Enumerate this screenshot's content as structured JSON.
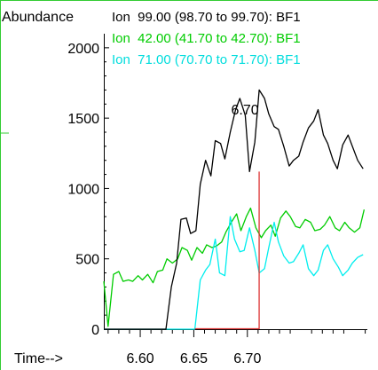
{
  "chart_data": {
    "type": "line",
    "ylabel": "Abundance",
    "xlabel": "Time-->",
    "xlim": [
      6.566,
      6.812
    ],
    "ylim": [
      0,
      2100
    ],
    "x_ticks": [
      6.6,
      6.65,
      6.7
    ],
    "x_tick_labels": [
      "6.60",
      "6.65",
      "6.70"
    ],
    "y_ticks": [
      0,
      500,
      1000,
      1500,
      2000
    ],
    "y_tick_labels": [
      "0",
      "500",
      "1000",
      "1500",
      "2000"
    ],
    "grid": false,
    "legend_position": "top",
    "series": [
      {
        "name": "Ion  99.00 (98.70 to 99.70): BF1",
        "color": "#000000",
        "x": [
          6.624,
          6.629,
          6.634,
          6.638,
          6.643,
          6.647,
          6.652,
          6.656,
          6.661,
          6.666,
          6.67,
          6.675,
          6.679,
          6.684,
          6.689,
          6.693,
          6.698,
          6.702,
          6.707,
          6.711,
          6.716,
          6.72,
          6.725,
          6.729,
          6.734,
          6.739,
          6.743,
          6.748,
          6.752,
          6.757,
          6.762,
          6.766,
          6.771,
          6.775,
          6.78,
          6.784,
          6.789,
          6.794,
          6.798,
          6.803,
          6.808
        ],
        "y": [
          0,
          300,
          470,
          780,
          790,
          680,
          700,
          1030,
          1200,
          1090,
          1340,
          1320,
          1210,
          1400,
          1560,
          1640,
          1520,
          1120,
          1330,
          1700,
          1640,
          1530,
          1440,
          1420,
          1300,
          1160,
          1200,
          1230,
          1330,
          1430,
          1480,
          1560,
          1380,
          1320,
          1200,
          1140,
          1310,
          1380,
          1300,
          1200,
          1140
        ]
      },
      {
        "name": "Ion  42.00 (41.70 to 42.70): BF1",
        "color": "#00cc00",
        "x": [
          6.566,
          6.57,
          6.575,
          6.58,
          6.584,
          6.589,
          6.593,
          6.598,
          6.602,
          6.607,
          6.612,
          6.616,
          6.621,
          6.625,
          6.63,
          6.635,
          6.639,
          6.644,
          6.648,
          6.653,
          6.658,
          6.662,
          6.667,
          6.671,
          6.676,
          6.68,
          6.685,
          6.69,
          6.694,
          6.699,
          6.703,
          6.708,
          6.713,
          6.717,
          6.722,
          6.726,
          6.731,
          6.736,
          6.74,
          6.745,
          6.749,
          6.754,
          6.759,
          6.763,
          6.768,
          6.772,
          6.777,
          6.782,
          6.786,
          6.791,
          6.795,
          6.8,
          6.805,
          6.809
        ],
        "y": [
          340,
          20,
          390,
          410,
          340,
          350,
          340,
          380,
          350,
          390,
          330,
          410,
          420,
          500,
          470,
          500,
          580,
          560,
          490,
          580,
          540,
          600,
          580,
          590,
          620,
          690,
          760,
          820,
          700,
          800,
          860,
          720,
          650,
          700,
          740,
          660,
          790,
          840,
          800,
          730,
          720,
          780,
          760,
          700,
          710,
          740,
          800,
          720,
          700,
          760,
          720,
          690,
          720,
          850
        ]
      },
      {
        "name": "Ion  71.00 (70.70 to 71.70): BF1",
        "color": "#00eeee",
        "x": [
          6.651,
          6.656,
          6.661,
          6.665,
          6.67,
          6.674,
          6.679,
          6.684,
          6.688,
          6.693,
          6.697,
          6.702,
          6.707,
          6.711,
          6.716,
          6.72,
          6.725,
          6.729,
          6.734,
          6.739,
          6.743,
          6.748,
          6.752,
          6.757,
          6.762,
          6.766,
          6.771,
          6.775,
          6.78,
          6.785,
          6.789,
          6.794,
          6.798,
          6.803,
          6.808
        ],
        "y": [
          0,
          350,
          420,
          460,
          640,
          400,
          380,
          800,
          640,
          550,
          560,
          720,
          560,
          400,
          430,
          580,
          760,
          620,
          520,
          470,
          480,
          540,
          600,
          430,
          380,
          420,
          560,
          600,
          500,
          440,
          380,
          420,
          470,
          510,
          530
        ]
      }
    ],
    "annotations": [
      {
        "text": "6.70",
        "x": 6.711,
        "y": 1700
      }
    ]
  }
}
